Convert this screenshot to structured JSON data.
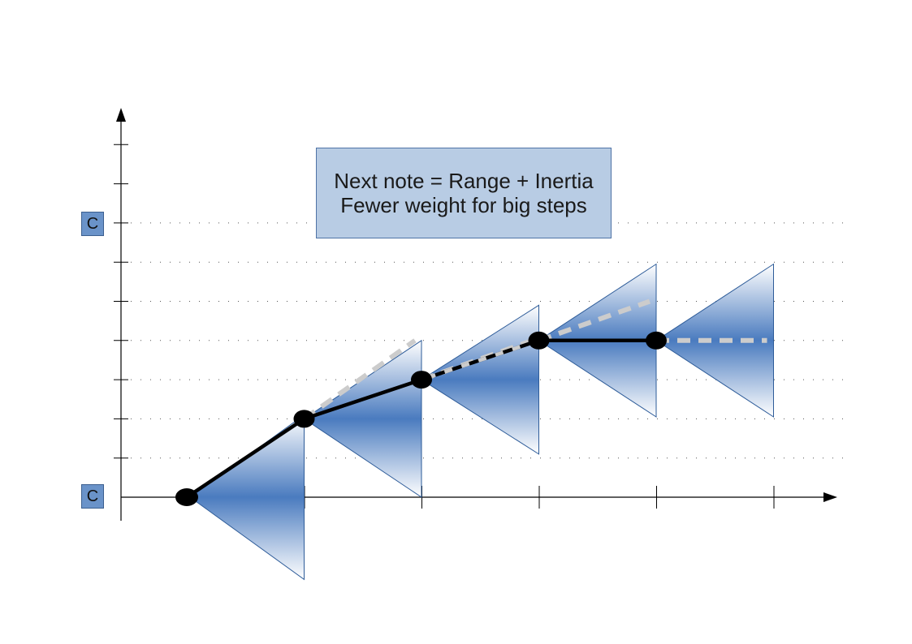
{
  "caption": {
    "line1": "Next note = Range + Inertia",
    "line2": "Fewer weight for big steps"
  },
  "axis_labels": {
    "bottom_note": "C",
    "top_note": "C"
  },
  "diagram": {
    "pitch_levels": 9,
    "steps": 6,
    "melody": [
      0,
      2,
      3,
      4,
      4
    ],
    "inertia_targets": [
      {
        "from_step": 1,
        "to_step": 2,
        "level": 4
      },
      {
        "from_step": 2,
        "to_step": 3,
        "level": 4
      },
      {
        "from_step": 3,
        "to_step": 4,
        "level": 5
      },
      {
        "from_step": 4,
        "to_step": 5,
        "level": 4
      }
    ],
    "colors": {
      "line": "#000000",
      "inertia": "#cccccc",
      "fan_dark": "#4a7bbf",
      "fan_light": "#ffffff",
      "grid": "#555555",
      "label_fill": "#6a93c9"
    }
  }
}
